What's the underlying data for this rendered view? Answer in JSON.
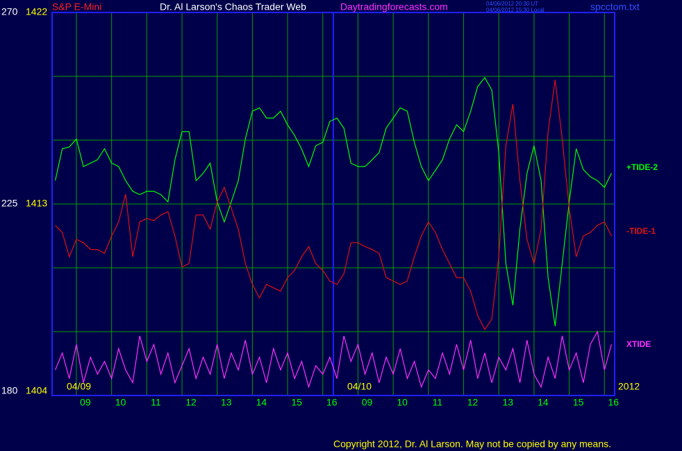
{
  "chart_data": {
    "type": "line",
    "title": "Dr. Al Larson's Chaos Trader Web",
    "instrument": "S&P E-Mini",
    "website": "Daytradingforecasts.com",
    "timestamps": [
      "04/06/2012 20:30 UT",
      "04/06/2012 15:30 Local"
    ],
    "file": "spcctom.txt",
    "day_labels": [
      "04/09",
      "04/10"
    ],
    "year": "2012",
    "copyright": "Copyright 2012, Dr. Al Larson. May not be copied by any means.",
    "grid": true,
    "ylim": [
      180,
      270
    ],
    "yticks": [
      180,
      {
        "value": 195,
        "label": null
      },
      {
        "value": 210,
        "label": null
      },
      225,
      {
        "value": 240,
        "label": null
      },
      {
        "value": 255,
        "label": null
      },
      270
    ],
    "y2lim": [
      1404,
      1422
    ],
    "y2ticks": [
      1404,
      1413,
      1422
    ],
    "xlim": [
      -0.69,
      15.29
    ],
    "xticks": [
      {
        "value": 0,
        "label": "09"
      },
      {
        "value": 1,
        "label": "10"
      },
      {
        "value": 2,
        "label": "11"
      },
      {
        "value": 3,
        "label": "12"
      },
      {
        "value": 4,
        "label": "13"
      },
      {
        "value": 5,
        "label": "14"
      },
      {
        "value": 6,
        "label": "15"
      },
      {
        "value": 7,
        "label": "16"
      },
      {
        "value": 8,
        "label": "09"
      },
      {
        "value": 9,
        "label": "10"
      },
      {
        "value": 10,
        "label": "11"
      },
      {
        "value": 11,
        "label": "12"
      },
      {
        "value": 12,
        "label": "13"
      },
      {
        "value": 13,
        "label": "14"
      },
      {
        "value": 14,
        "label": "15"
      },
      {
        "value": 15,
        "label": "16"
      }
    ],
    "x": [
      -0.6,
      -0.4,
      -0.2,
      0,
      0.2,
      0.4,
      0.6,
      0.8,
      1,
      1.2,
      1.4,
      1.6,
      1.8,
      2,
      2.2,
      2.4,
      2.6,
      2.8,
      3,
      3.2,
      3.4,
      3.6,
      3.8,
      4,
      4.2,
      4.4,
      4.6,
      4.8,
      5,
      5.2,
      5.4,
      5.6,
      5.8,
      6,
      6.2,
      6.4,
      6.6,
      6.8,
      7,
      7.2,
      7.4,
      7.6,
      7.8,
      8,
      8.2,
      8.4,
      8.6,
      8.8,
      9,
      9.2,
      9.4,
      9.6,
      9.8,
      10,
      10.2,
      10.4,
      10.6,
      10.8,
      11,
      11.2,
      11.4,
      11.6,
      11.8,
      12,
      12.2,
      12.4,
      12.6,
      12.8,
      13,
      13.2,
      13.4,
      13.6,
      13.8,
      14,
      14.2,
      14.4,
      14.6,
      14.8,
      15,
      15.2
    ],
    "series": [
      {
        "name": "+TIDE-2",
        "color": "#00ff00",
        "values": [
          230.5,
          238,
          238.4,
          240.3,
          233.8,
          234.6,
          235.4,
          238,
          234.6,
          233.8,
          230.5,
          228,
          227.2,
          228,
          228,
          227.2,
          225.5,
          235.4,
          242,
          242,
          230.5,
          232.2,
          234.6,
          225.5,
          220.8,
          225.5,
          230.5,
          240.3,
          246.8,
          247.6,
          245.2,
          245.2,
          246.8,
          243.6,
          241.1,
          237.9,
          233.8,
          238.7,
          239.5,
          244.4,
          245.2,
          242.8,
          234.6,
          233.8,
          233.8,
          235.4,
          237.1,
          242.8,
          245.2,
          247.6,
          246.8,
          239.5,
          233.8,
          230.5,
          232.9,
          235.4,
          240.3,
          243.6,
          242,
          246.8,
          252.6,
          254.7,
          251.8,
          237.1,
          211,
          201.2,
          219.1,
          232.2,
          238.7,
          230.5,
          207.7,
          196.3,
          211,
          225.5,
          238,
          233.1,
          231.4,
          230.5,
          228.9,
          232.2
        ]
      },
      {
        "name": "-TIDE-1",
        "color": "#e01010",
        "values": [
          220,
          218.3,
          212.6,
          216.7,
          215.9,
          214.3,
          214.3,
          213.4,
          217.5,
          220.8,
          227.3,
          212.6,
          220.8,
          221.6,
          221.1,
          222.4,
          223.2,
          217.5,
          210.2,
          211,
          222.4,
          222.4,
          219.1,
          225.5,
          228.9,
          224,
          219.1,
          211,
          206.1,
          202.9,
          206.1,
          205.3,
          204.5,
          207.7,
          209.4,
          212.6,
          215,
          211,
          209.4,
          206.9,
          206.1,
          208.6,
          215.9,
          215.9,
          215,
          214.3,
          213.4,
          207.7,
          206.9,
          206.1,
          206.9,
          212.6,
          217.5,
          220.8,
          218.3,
          214.3,
          211,
          207.7,
          207.7,
          204.5,
          198.8,
          195.5,
          197.9,
          212.6,
          238.7,
          248.5,
          230.5,
          216.7,
          211,
          219.1,
          242,
          254.2,
          240.3,
          224,
          212.6,
          217.5,
          218.3,
          220,
          220.8,
          217.5
        ]
      },
      {
        "name": "XTIDE",
        "color": "#ff30ff",
        "values": [
          186,
          190,
          184,
          192,
          183,
          189,
          185,
          188,
          184,
          191,
          186,
          183,
          194,
          188,
          192,
          185,
          190,
          183,
          187,
          191,
          184,
          189,
          185,
          192,
          184,
          190,
          186,
          193,
          185,
          189,
          183,
          191,
          186,
          190,
          184,
          188,
          182,
          187,
          185,
          189,
          184,
          194,
          188,
          192,
          185,
          190,
          183,
          189,
          185,
          191,
          184,
          188,
          182,
          186,
          184,
          190,
          185,
          192,
          186,
          193,
          184,
          190,
          183,
          189,
          186,
          191,
          183,
          193,
          185,
          182,
          189,
          184,
          194,
          186,
          190,
          183,
          192,
          195,
          186,
          192
        ]
      }
    ]
  }
}
